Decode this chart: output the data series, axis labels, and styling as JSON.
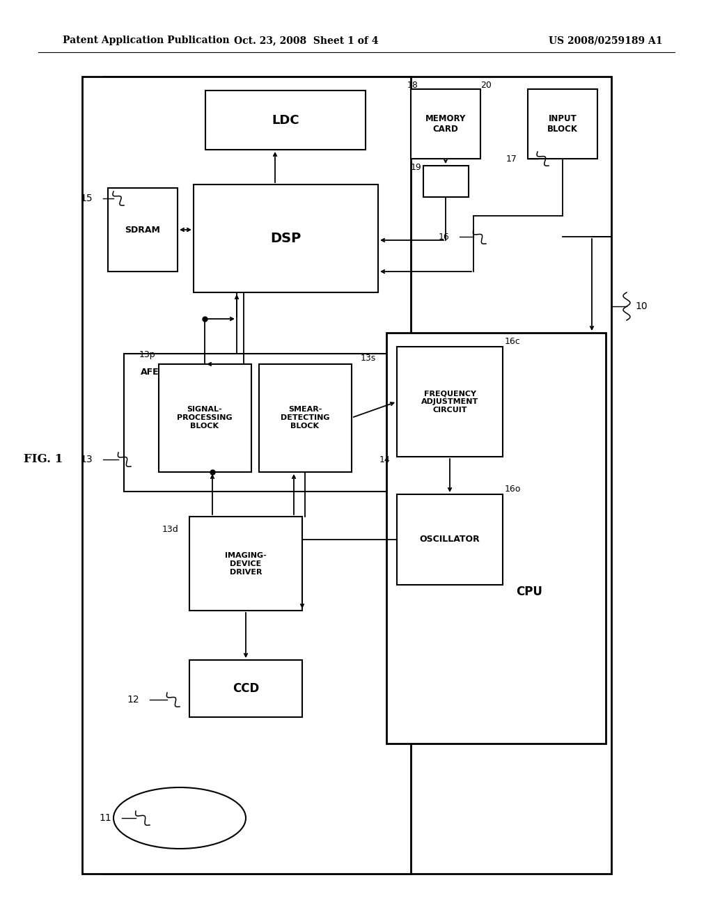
{
  "bg_color": "#ffffff",
  "header_left": "Patent Application Publication",
  "header_mid": "Oct. 23, 2008  Sheet 1 of 4",
  "header_right": "US 2008/0259189 A1",
  "fig_label": "FIG. 1"
}
